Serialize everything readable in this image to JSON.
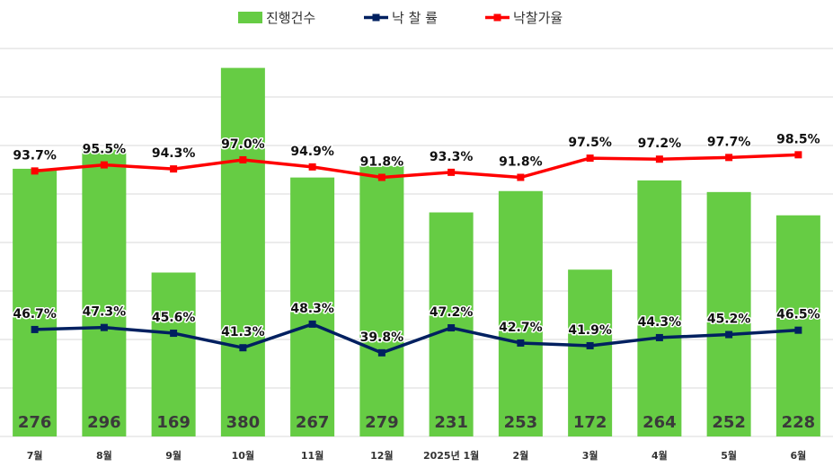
{
  "chart_data": {
    "type": "bar",
    "categories": [
      "7월",
      "8월",
      "9월",
      "10월",
      "11월",
      "12월",
      "2025년 1월",
      "2월",
      "3월",
      "4월",
      "5월",
      "6월"
    ],
    "series": [
      {
        "name": "진행건수",
        "kind": "bar",
        "color": "#66cc44",
        "values": [
          276,
          296,
          169,
          380,
          267,
          279,
          231,
          253,
          172,
          264,
          252,
          228
        ],
        "labels": [
          "276",
          "296",
          "169",
          "380",
          "267",
          "279",
          "231",
          "253",
          "172",
          "264",
          "252",
          "228"
        ]
      },
      {
        "name": "낙 찰 률",
        "kind": "line",
        "color": "#002060",
        "values": [
          46.7,
          47.3,
          45.6,
          41.3,
          48.3,
          39.8,
          47.2,
          42.7,
          41.9,
          44.3,
          45.2,
          46.5
        ],
        "labels": [
          "46.7%",
          "47.3%",
          "45.6%",
          "41.3%",
          "48.3%",
          "39.8%",
          "47.2%",
          "42.7%",
          "41.9%",
          "44.3%",
          "45.2%",
          "46.5%"
        ]
      },
      {
        "name": "낙찰가율",
        "kind": "line",
        "color": "#ff0000",
        "values": [
          93.7,
          95.5,
          94.3,
          97.0,
          94.9,
          91.8,
          93.3,
          91.8,
          97.5,
          97.2,
          97.7,
          98.5
        ],
        "labels": [
          "93.7%",
          "95.5%",
          "94.3%",
          "97.0%",
          "94.9%",
          "91.8%",
          "93.3%",
          "91.8%",
          "97.5%",
          "97.2%",
          "97.7%",
          "98.5%"
        ]
      }
    ],
    "bar_axis_range": [
      0,
      400
    ],
    "line_axis_range": [
      15,
      130
    ],
    "grid": true,
    "legend": "top-center",
    "gridline_color": "#d9d9d9"
  }
}
